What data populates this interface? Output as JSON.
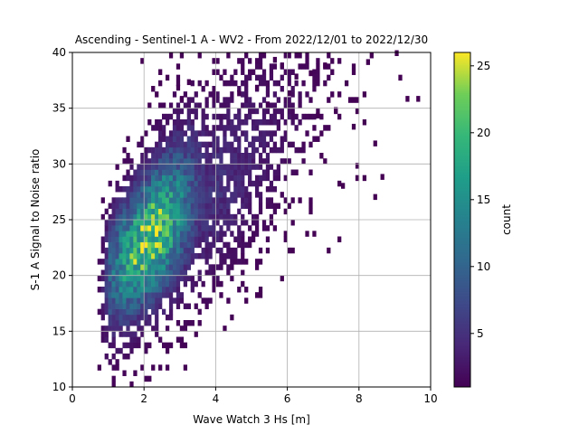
{
  "chart_data": {
    "type": "heatmap",
    "title": "Ascending - Sentinel-1 A - WV2 - From 2022/12/01 to 2022/12/30",
    "xlabel": "Wave Watch 3 Hs [m]",
    "ylabel": "S-1 A Signal to Noise ratio",
    "xlim": [
      0,
      10
    ],
    "ylim": [
      10,
      40
    ],
    "xticks": [
      "0",
      "2",
      "4",
      "6",
      "8",
      "10"
    ],
    "yticks": [
      "10",
      "15",
      "20",
      "25",
      "30",
      "35",
      "40"
    ],
    "grid": true,
    "bin_width_x": 0.1,
    "bin_width_y": 0.5,
    "colormap": "viridis",
    "colorbar": {
      "label": "count",
      "range": [
        1,
        26
      ],
      "ticks": [
        "5",
        "10",
        "15",
        "20",
        "25"
      ]
    },
    "density_model": {
      "description": "2D histogram of SNR vs Hs; peak count ~26 near Hs 2.1 m, SNR 22",
      "peak": {
        "x": 2.1,
        "y": 22,
        "count": 26
      },
      "x_extent": [
        0.6,
        9.6
      ],
      "y_extent": [
        10,
        40
      ]
    },
    "outlier_bins": [
      [
        9.0,
        39.7
      ],
      [
        8.2,
        38.9
      ],
      [
        7.0,
        38.6
      ],
      [
        6.2,
        37.6
      ],
      [
        5.1,
        36.6
      ],
      [
        7.8,
        33.1
      ],
      [
        8.4,
        31.6
      ],
      [
        9.6,
        35.6
      ],
      [
        9.3,
        35.6
      ],
      [
        8.1,
        36.0
      ],
      [
        8.6,
        28.6
      ],
      [
        8.4,
        26.8
      ],
      [
        7.5,
        27.8
      ],
      [
        7.9,
        29.6
      ],
      [
        7.3,
        34.6
      ],
      [
        6.6,
        37.9
      ],
      [
        5.6,
        39.1
      ],
      [
        2.9,
        36.6
      ],
      [
        3.2,
        37.1
      ],
      [
        3.0,
        35.6
      ],
      [
        5.4,
        35.1
      ],
      [
        4.6,
        36.1
      ],
      [
        6.8,
        34.1
      ],
      [
        6.0,
        36.1
      ],
      [
        5.8,
        38.6
      ]
    ]
  }
}
